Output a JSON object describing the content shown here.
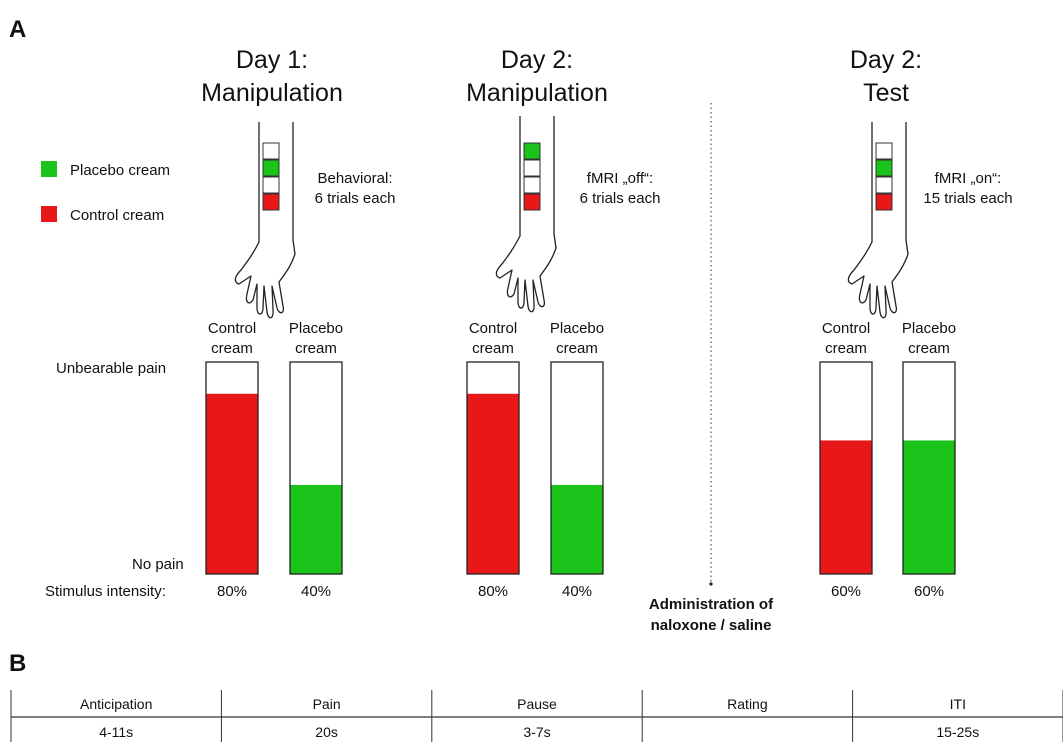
{
  "panel_a": {
    "letter": "A",
    "legend": {
      "placebo_label": "Placebo cream",
      "control_label": "Control cream",
      "placebo_color": "#19c319",
      "control_color": "#e81818"
    },
    "y_top_label": "Unbearable pain",
    "y_bottom_label": "No pain",
    "intensity_label": "Stimulus intensity:",
    "columns": [
      {
        "title_line1": "Day 1:",
        "title_line2": "Manipulation",
        "note_line1": "Behavioral:",
        "note_line2": "6 trials each",
        "arm_squares": [
          "white",
          "green",
          "white",
          "red"
        ],
        "bars": [
          {
            "label_line1": "Control",
            "label_line2": "cream",
            "color": "red",
            "level": 0.85,
            "intensity": "80%"
          },
          {
            "label_line1": "Placebo",
            "label_line2": "cream",
            "color": "green",
            "level": 0.42,
            "intensity": "40%"
          }
        ]
      },
      {
        "title_line1": "Day 2:",
        "title_line2": "Manipulation",
        "note_line1": "fMRI „off“:",
        "note_line2": "6 trials each",
        "arm_squares": [
          "green",
          "white",
          "white",
          "red"
        ],
        "bars": [
          {
            "label_line1": "Control",
            "label_line2": "cream",
            "color": "red",
            "level": 0.85,
            "intensity": "80%"
          },
          {
            "label_line1": "Placebo",
            "label_line2": "cream",
            "color": "green",
            "level": 0.42,
            "intensity": "40%"
          }
        ]
      },
      {
        "title_line1": "Day 2:",
        "title_line2": "Test",
        "note_line1": "fMRI „on“:",
        "note_line2": "15 trials each",
        "arm_squares": [
          "white",
          "green",
          "white",
          "red"
        ],
        "bars": [
          {
            "label_line1": "Control",
            "label_line2": "cream",
            "color": "red",
            "level": 0.63,
            "intensity": "60%"
          },
          {
            "label_line1": "Placebo",
            "label_line2": "cream",
            "color": "green",
            "level": 0.63,
            "intensity": "60%"
          }
        ]
      }
    ],
    "admin_line1": "Administration of",
    "admin_line2": "naloxone / saline"
  },
  "panel_b": {
    "letter": "B",
    "headers": [
      "Anticipation",
      "Pain",
      "Pause",
      "Rating",
      "ITI"
    ],
    "durations": [
      "4-11s",
      "20s",
      "3-7s",
      "",
      "15-25s"
    ]
  }
}
